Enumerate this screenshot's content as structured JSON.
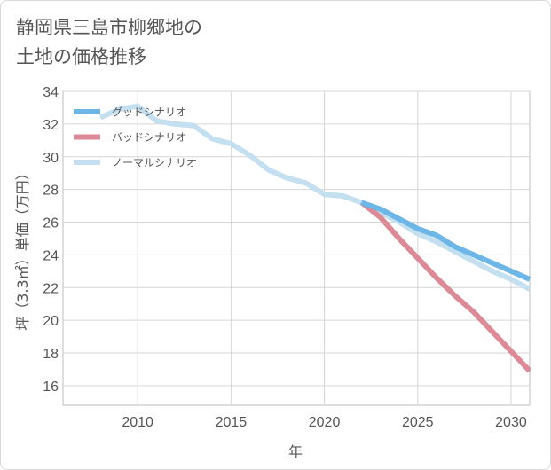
{
  "title_lines": [
    "静岡県三島市柳郷地の",
    "土地の価格推移"
  ],
  "chart_data": {
    "type": "line",
    "xlabel": "年",
    "ylabel": "坪（3.3㎡）単価（万円）",
    "xlim": [
      2006,
      2031
    ],
    "ylim": [
      14.8,
      34
    ],
    "x_ticks": [
      2010,
      2015,
      2020,
      2025,
      2030
    ],
    "y_ticks": [
      16,
      18,
      20,
      22,
      24,
      26,
      28,
      30,
      32,
      34
    ],
    "grid": true,
    "legend_position": "top-left",
    "series": [
      {
        "name": "グッドシナリオ",
        "color": "#6cb6e8",
        "x": [
          2022,
          2023,
          2024,
          2025,
          2026,
          2027,
          2028,
          2029,
          2030,
          2031
        ],
        "y": [
          27.2,
          26.8,
          26.2,
          25.6,
          25.2,
          24.5,
          24.0,
          23.5,
          23.0,
          22.5
        ]
      },
      {
        "name": "バッドシナリオ",
        "color": "#dc8a96",
        "x": [
          2022,
          2023,
          2024,
          2025,
          2026,
          2027,
          2028,
          2029,
          2030,
          2031
        ],
        "y": [
          27.2,
          26.3,
          25.0,
          23.8,
          22.6,
          21.5,
          20.5,
          19.3,
          18.1,
          16.9
        ]
      },
      {
        "name": "ノーマルシナリオ",
        "color": "#c4e0f0",
        "x": [
          2008,
          2009,
          2010,
          2011,
          2012,
          2013,
          2014,
          2015,
          2016,
          2017,
          2018,
          2019,
          2020,
          2021,
          2022,
          2023,
          2024,
          2025,
          2026,
          2027,
          2028,
          2029,
          2030,
          2031
        ],
        "y": [
          32.4,
          32.9,
          33.1,
          32.2,
          32.0,
          31.9,
          31.1,
          30.8,
          30.1,
          29.2,
          28.7,
          28.4,
          27.7,
          27.6,
          27.2,
          26.6,
          26.0,
          25.3,
          24.8,
          24.2,
          23.6,
          23.0,
          22.5,
          21.9
        ]
      }
    ]
  }
}
